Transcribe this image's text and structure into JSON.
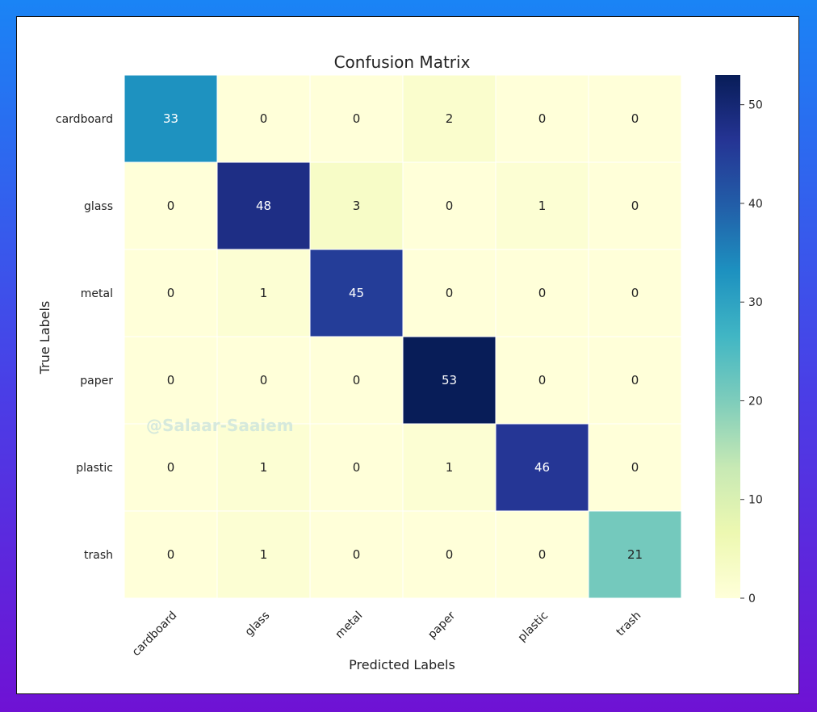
{
  "watermark": "@Salaar-Saaiem",
  "chart_data": {
    "type": "heatmap",
    "title": "Confusion Matrix",
    "xlabel": "Predicted Labels",
    "ylabel": "True Labels",
    "x_categories": [
      "cardboard",
      "glass",
      "metal",
      "paper",
      "plastic",
      "trash"
    ],
    "y_categories": [
      "cardboard",
      "glass",
      "metal",
      "paper",
      "plastic",
      "trash"
    ],
    "values": [
      [
        33,
        0,
        0,
        2,
        0,
        0
      ],
      [
        0,
        48,
        3,
        0,
        1,
        0
      ],
      [
        0,
        1,
        45,
        0,
        0,
        0
      ],
      [
        0,
        0,
        0,
        53,
        0,
        0
      ],
      [
        0,
        1,
        0,
        1,
        46,
        0
      ],
      [
        0,
        1,
        0,
        0,
        0,
        21
      ]
    ],
    "colormap": "YlGnBu",
    "colorbar": {
      "min": 0,
      "max": 53,
      "ticks": [
        0,
        10,
        20,
        30,
        40,
        50
      ]
    }
  }
}
